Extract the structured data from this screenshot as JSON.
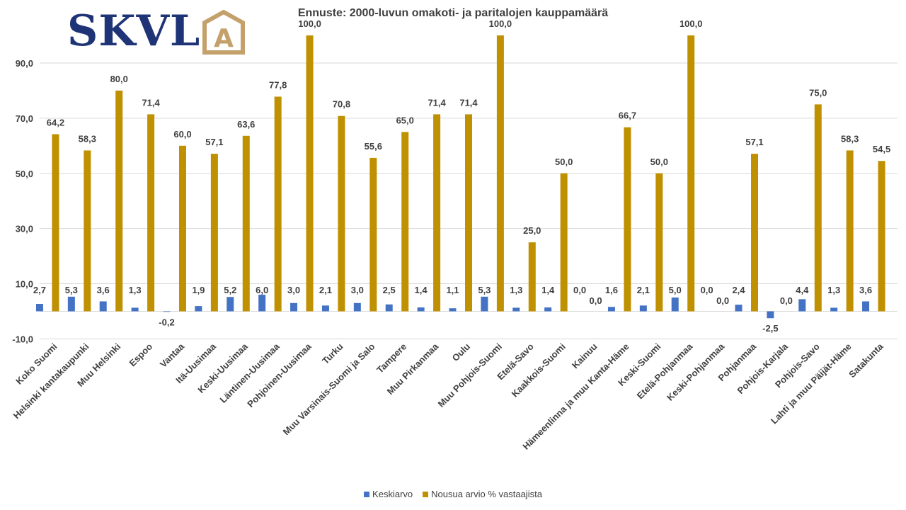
{
  "logo": {
    "text": "SKVL",
    "mark_letter": "A",
    "color": "#1e3476",
    "mark_color": "#c4a06a"
  },
  "chart_data": {
    "type": "bar",
    "title": "Ennuste: 2000-luvun omakoti- ja paritalojen kauppamäärä",
    "xlabel": "",
    "ylabel": "",
    "ylim": [
      -10,
      100
    ],
    "yticks": [
      -10,
      10,
      30,
      50,
      70,
      90
    ],
    "ytick_labels": [
      "-10,0",
      "10,0",
      "30,0",
      "50,0",
      "70,0",
      "90,0"
    ],
    "grid": true,
    "legend_position": "bottom",
    "categories": [
      "Koko Suomi",
      "Helsinki kantakaupunki",
      "Muu Helsinki",
      "Espoo",
      "Vantaa",
      "Itä-Uusimaa",
      "Keski-Uusimaa",
      "Läntinen-Uusimaa",
      "Pohjoinen-Uusimaa",
      "Turku",
      "Muu Varsinais-Suomi ja Salo",
      "Tampere",
      "Muu Pirkanmaa",
      "Oulu",
      "Muu Pohjois-Suomi",
      "Etelä-Savo",
      "Kaakkois-Suomi",
      "Kainuu",
      "Hämeenlinna ja muu Kanta-Häme",
      "Keski-Suomi",
      "Etelä-Pohjanmaa",
      "Keski-Pohjanmaa",
      "Pohjanmaa",
      "Pohjois-Karjala",
      "Pohjois-Savo",
      "Lahti ja muu Päijät-Häme",
      "Satakunta"
    ],
    "series": [
      {
        "name": "Keskiarvo",
        "color": "#4472c4",
        "values": [
          2.7,
          5.3,
          3.6,
          1.3,
          -0.2,
          1.9,
          5.2,
          6.0,
          3.0,
          2.1,
          3.0,
          2.5,
          1.4,
          1.1,
          5.3,
          1.3,
          1.4,
          0.0,
          1.6,
          2.1,
          5.0,
          0.0,
          2.4,
          -2.5,
          4.4,
          1.3,
          3.6
        ],
        "labels": [
          "2,7",
          "5,3",
          "3,6",
          "1,3",
          "-0,2",
          "1,9",
          "5,2",
          "6,0",
          "3,0",
          "2,1",
          "3,0",
          "2,5",
          "1,4",
          "1,1",
          "5,3",
          "1,3",
          "1,4",
          "0,0",
          "1,6",
          "2,1",
          "5,0",
          "0,0",
          "2,4",
          "-2,5",
          "4,4",
          "1,3",
          "3,6"
        ]
      },
      {
        "name": "Nousua arvio % vastaajista",
        "color": "#bf9000",
        "values": [
          64.2,
          58.3,
          80.0,
          71.4,
          60.0,
          57.1,
          63.6,
          77.8,
          100.0,
          70.8,
          55.6,
          65.0,
          71.4,
          71.4,
          100.0,
          25.0,
          50.0,
          0.0,
          66.7,
          50.0,
          100.0,
          0.0,
          57.1,
          0.0,
          75.0,
          58.3,
          54.5
        ],
        "labels": [
          "64,2",
          "58,3",
          "80,0",
          "71,4",
          "60,0",
          "57,1",
          "63,6",
          "77,8",
          "100,0",
          "70,8",
          "55,6",
          "65,0",
          "71,4",
          "71,4",
          "100,0",
          "25,0",
          "50,0",
          "0,0",
          "66,7",
          "50,0",
          "100,0",
          "0,0",
          "57,1",
          "0,0",
          "75,0",
          "58,3",
          "54,5"
        ]
      }
    ]
  }
}
